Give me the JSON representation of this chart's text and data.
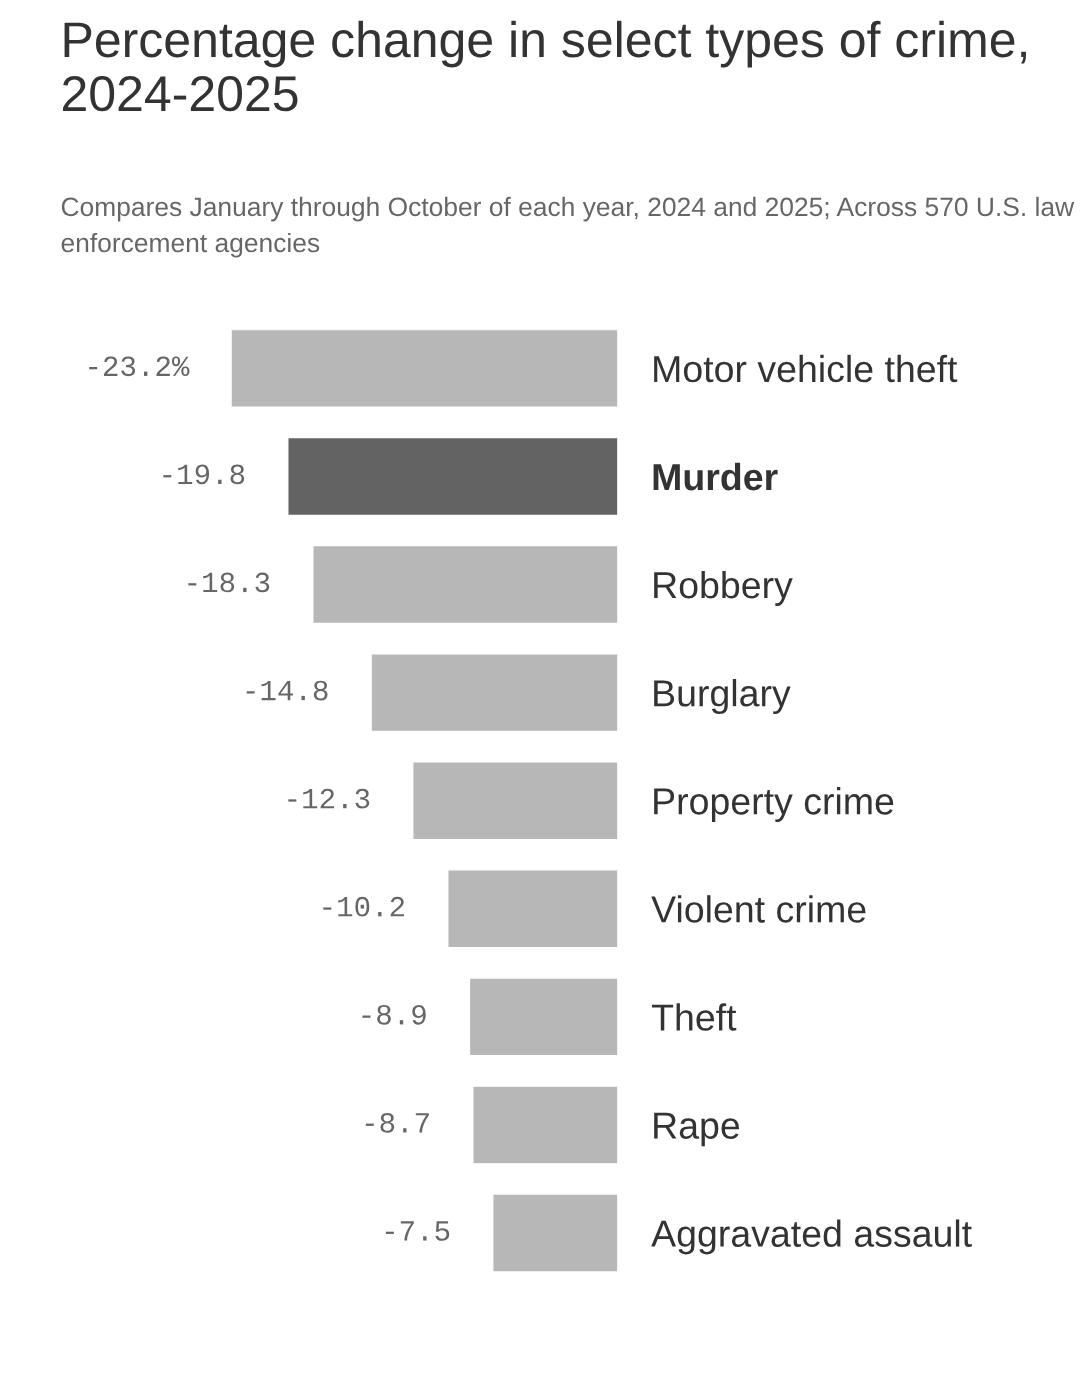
{
  "chart_data": {
    "type": "bar",
    "orientation": "horizontal",
    "title": "Percentage change in select types of crime, 2024-2025",
    "subtitle": "Compares January through October of each year, 2024 and 2025; Across 570 U.S. law enforcement agencies",
    "categories": [
      "Motor vehicle theft",
      "Murder",
      "Robbery",
      "Burglary",
      "Property crime",
      "Violent crime",
      "Theft",
      "Rape",
      "Aggravated assault"
    ],
    "values": [
      -23.2,
      -19.8,
      -18.3,
      -14.8,
      -12.3,
      -10.2,
      -8.9,
      -8.7,
      -7.5
    ],
    "value_labels": [
      "-23.2%",
      "-19.8",
      "-18.3",
      "-14.8",
      "-12.3",
      "-10.2",
      "-8.9",
      "-8.7",
      "-7.5"
    ],
    "colors": [
      "#b7b7b7",
      "#636363",
      "#b7b7b7",
      "#b7b7b7",
      "#b7b7b7",
      "#b7b7b7",
      "#b7b7b7",
      "#b7b7b7",
      "#b7b7b7"
    ],
    "grid": false,
    "legend": false
  }
}
